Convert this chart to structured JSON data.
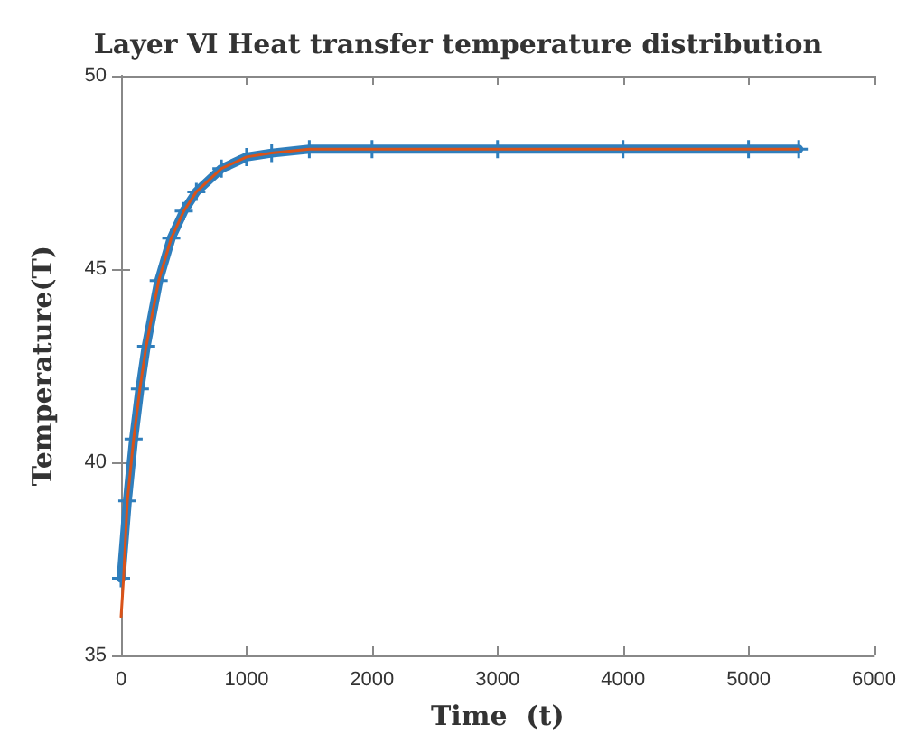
{
  "chart_data": {
    "type": "line",
    "title": "Layer Ⅵ Heat transfer temperature distribution",
    "xlabel": "Time  (t)",
    "ylabel": "Temperature(T)",
    "xlim": [
      0,
      6000
    ],
    "xticks": [
      0,
      1000,
      2000,
      3000,
      4000,
      5000,
      6000
    ],
    "ylim": [
      35,
      50
    ],
    "yticks": [
      35,
      40,
      45,
      50
    ],
    "grid": false,
    "line_style": "solid",
    "series": [
      {
        "color": "#2f7ebc",
        "marker": "cross",
        "x": [
          0,
          50,
          100,
          150,
          200,
          300,
          400,
          500,
          600,
          800,
          1000,
          1200,
          1500,
          2000,
          3000,
          4000,
          5000,
          5400
        ],
        "values": [
          37.0,
          39.0,
          40.6,
          41.9,
          43.0,
          44.7,
          45.8,
          46.5,
          47.0,
          47.6,
          47.9,
          48.0,
          48.1,
          48.1,
          48.1,
          48.1,
          48.1,
          48.1
        ]
      },
      {
        "color": "#d95319",
        "marker": "none",
        "x": [
          0,
          20,
          50,
          100,
          150,
          200,
          300,
          400,
          500,
          600,
          800,
          1000,
          1200,
          1500,
          2000,
          3000,
          4000,
          5000,
          5400
        ],
        "values": [
          36.0,
          37.0,
          39.0,
          40.6,
          41.9,
          43.0,
          44.7,
          45.8,
          46.5,
          47.0,
          47.6,
          47.9,
          48.0,
          48.1,
          48.1,
          48.1,
          48.1,
          48.1,
          48.1
        ]
      }
    ]
  }
}
